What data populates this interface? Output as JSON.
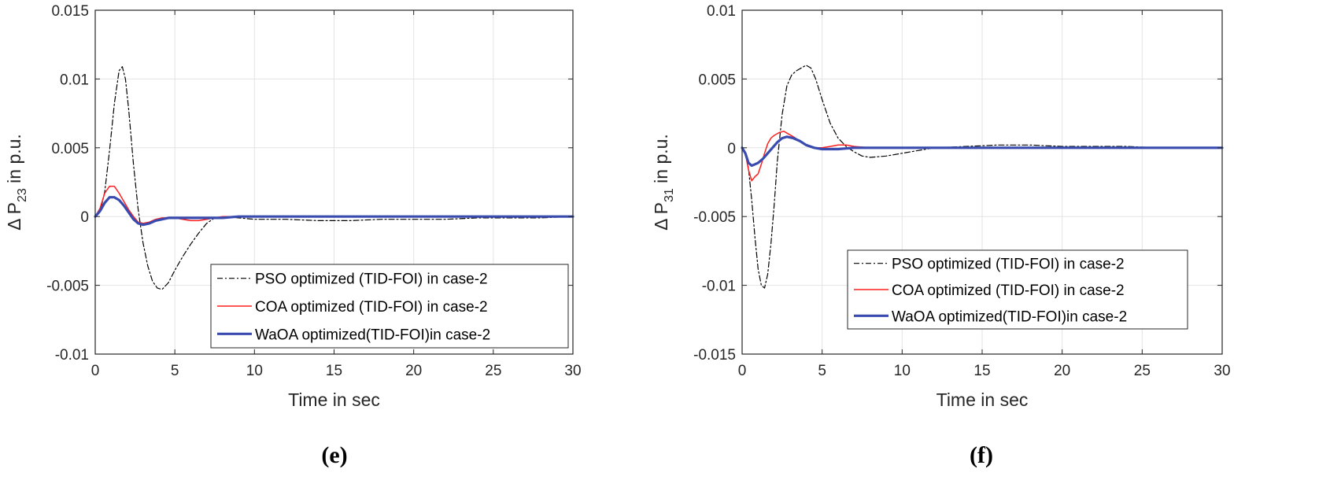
{
  "chart_data": [
    {
      "type": "line",
      "panel_label": "(e)",
      "xlabel": "Time in sec",
      "ylabel_main": "Δ P",
      "ylabel_sub": "23",
      "ylabel_suffix": " in p.u.",
      "xlim": [
        0,
        30
      ],
      "ylim": [
        -0.01,
        0.015
      ],
      "xticks": [
        0,
        5,
        10,
        15,
        20,
        25,
        30
      ],
      "xtick_labels": [
        "0",
        "5",
        "10",
        "15",
        "20",
        "25",
        "30"
      ],
      "yticks": [
        -0.01,
        -0.005,
        0,
        0.005,
        0.01,
        0.015
      ],
      "ytick_labels": [
        "-0.01",
        "-0.005",
        "0",
        "0.005",
        "0.01",
        "0.015"
      ],
      "grid": true,
      "legend_position": "lower-right",
      "series": [
        {
          "name": "PSO optimized (TID-FOI) in case-2",
          "style": "dashdot",
          "color": "#000000",
          "x": [
            0,
            0.3,
            0.6,
            0.9,
            1.2,
            1.5,
            1.7,
            1.9,
            2.1,
            2.4,
            2.7,
            3.0,
            3.3,
            3.6,
            3.9,
            4.2,
            4.6,
            5.0,
            5.5,
            6.0,
            6.5,
            7.0,
            7.5,
            8.0,
            9.0,
            10.0,
            12.0,
            14.0,
            16.0,
            18.0,
            20.0,
            22.0,
            24.0,
            26.0,
            28.0,
            30.0
          ],
          "y": [
            0,
            0.0003,
            0.0018,
            0.0048,
            0.0082,
            0.0106,
            0.0109,
            0.01,
            0.0078,
            0.0038,
            0.0005,
            -0.0019,
            -0.0036,
            -0.0047,
            -0.0052,
            -0.0053,
            -0.0048,
            -0.0039,
            -0.0029,
            -0.002,
            -0.0012,
            -0.0005,
            -0.0001,
            0,
            -0.0001,
            -0.0002,
            -0.0002,
            -0.0003,
            -0.0003,
            -0.0002,
            -0.0002,
            -0.0002,
            -0.0001,
            -0.0001,
            -0.0001,
            0
          ]
        },
        {
          "name": "COA optimized (TID-FOI) in case-2",
          "style": "solid",
          "color": "#ff1f1f",
          "x": [
            0,
            0.3,
            0.6,
            0.9,
            1.2,
            1.5,
            1.8,
            2.1,
            2.4,
            2.7,
            3.0,
            3.4,
            3.8,
            4.2,
            4.6,
            5.0,
            5.5,
            6.0,
            6.5,
            7.0,
            7.5,
            8.0,
            9.0,
            10.0,
            15.0,
            20.0,
            25.0,
            30.0
          ],
          "y": [
            0,
            0.0006,
            0.0017,
            0.0022,
            0.0022,
            0.0017,
            0.0011,
            0.0005,
            0,
            -0.0004,
            -0.0005,
            -0.0004,
            -0.0002,
            -0.0001,
            -0.0001,
            -0.0001,
            -0.0002,
            -0.0003,
            -0.0003,
            -0.0002,
            -0.0001,
            0,
            0,
            0,
            0,
            0,
            0,
            0
          ]
        },
        {
          "name": "WaOA optimized(TID-FOI)in case-2",
          "style": "solid-thick",
          "color": "#3a4bb0",
          "x": [
            0,
            0.3,
            0.6,
            0.9,
            1.2,
            1.5,
            1.8,
            2.1,
            2.4,
            2.7,
            3.0,
            3.4,
            3.8,
            4.2,
            4.6,
            5.0,
            6.0,
            7.0,
            8.0,
            9.0,
            10.0,
            15.0,
            20.0,
            25.0,
            30.0
          ],
          "y": [
            0,
            0.0004,
            0.001,
            0.0014,
            0.0014,
            0.0012,
            0.0008,
            0.0003,
            -0.0002,
            -0.0005,
            -0.0006,
            -0.0005,
            -0.0003,
            -0.0002,
            -0.0001,
            -0.0001,
            -0.0001,
            -0.0001,
            -0.0001,
            0,
            0,
            0,
            0,
            0,
            0
          ]
        }
      ]
    },
    {
      "type": "line",
      "panel_label": "(f)",
      "xlabel": "Time in sec",
      "ylabel_main": "Δ P",
      "ylabel_sub": "31",
      "ylabel_suffix": " in p.u.",
      "xlim": [
        0,
        30
      ],
      "ylim": [
        -0.015,
        0.01
      ],
      "xticks": [
        0,
        5,
        10,
        15,
        20,
        25,
        30
      ],
      "xtick_labels": [
        "0",
        "5",
        "10",
        "15",
        "20",
        "25",
        "30"
      ],
      "yticks": [
        -0.015,
        -0.01,
        -0.005,
        0,
        0.005,
        0.01
      ],
      "ytick_labels": [
        "-0.015",
        "-0.01",
        "-0.005",
        "0",
        "0.005",
        "0.01"
      ],
      "grid": true,
      "legend_position": "lower-right",
      "series": [
        {
          "name": "PSO optimized (TID-FOI) in case-2",
          "style": "dashdot",
          "color": "#000000",
          "x": [
            0,
            0.2,
            0.4,
            0.6,
            0.8,
            1.0,
            1.2,
            1.4,
            1.6,
            1.8,
            2.0,
            2.2,
            2.5,
            2.8,
            3.1,
            3.4,
            3.7,
            4.0,
            4.3,
            4.6,
            5.0,
            5.5,
            6.0,
            6.5,
            7.0,
            7.5,
            8.0,
            9.0,
            10.0,
            11.0,
            12.0,
            14.0,
            16.0,
            18.0,
            20.0,
            22.0,
            24.0,
            26.0,
            28.0,
            30.0
          ],
          "y": [
            0,
            -0.0003,
            -0.0015,
            -0.0038,
            -0.0065,
            -0.0088,
            -0.01,
            -0.0102,
            -0.0092,
            -0.007,
            -0.0042,
            -0.001,
            0.0024,
            0.0045,
            0.0053,
            0.0056,
            0.0058,
            0.006,
            0.0058,
            0.005,
            0.0035,
            0.0018,
            0.0007,
            0.0001,
            -0.0003,
            -0.0006,
            -0.0007,
            -0.0006,
            -0.0004,
            -0.0002,
            0,
            0.0001,
            0.0002,
            0.0002,
            0.0001,
            0.0001,
            0.0001,
            0,
            0,
            0
          ]
        },
        {
          "name": "COA optimized (TID-FOI) in case-2",
          "style": "solid",
          "color": "#ff1f1f",
          "x": [
            0,
            0.2,
            0.4,
            0.6,
            0.8,
            1.0,
            1.2,
            1.4,
            1.6,
            1.8,
            2.0,
            2.3,
            2.6,
            2.9,
            3.2,
            3.6,
            4.0,
            4.5,
            5.0,
            5.5,
            6.0,
            6.5,
            7.0,
            8.0,
            9.0,
            10.0,
            15.0,
            20.0,
            25.0,
            30.0
          ],
          "y": [
            0,
            -0.0004,
            -0.0016,
            -0.0024,
            -0.0021,
            -0.0019,
            -0.0012,
            -0.0004,
            0.0003,
            0.0007,
            0.0009,
            0.0011,
            0.0012,
            0.001,
            0.0008,
            0.0005,
            0.0002,
            0,
            0,
            0.0001,
            0.0002,
            0.0002,
            0.0001,
            0,
            0,
            0,
            0,
            0,
            0,
            0
          ]
        },
        {
          "name": "WaOA optimized(TID-FOI)in case-2",
          "style": "solid-thick",
          "color": "#3a4bb0",
          "x": [
            0,
            0.2,
            0.4,
            0.6,
            0.8,
            1.0,
            1.3,
            1.6,
            1.9,
            2.2,
            2.5,
            2.8,
            3.2,
            3.6,
            4.0,
            4.5,
            5.0,
            6.0,
            7.0,
            8.0,
            10.0,
            15.0,
            20.0,
            25.0,
            30.0
          ],
          "y": [
            0,
            -0.0004,
            -0.0011,
            -0.0013,
            -0.0012,
            -0.0011,
            -0.0008,
            -0.0004,
            0,
            0.0004,
            0.0007,
            0.0008,
            0.0007,
            0.0005,
            0.0002,
            0,
            -0.0001,
            -0.0001,
            0,
            0,
            0,
            0,
            0,
            0,
            0
          ]
        }
      ]
    }
  ]
}
